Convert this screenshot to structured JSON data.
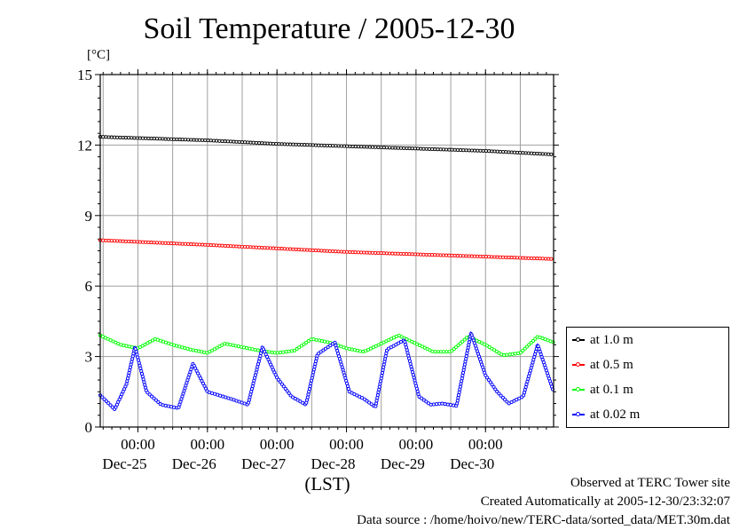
{
  "chart_data": {
    "type": "line",
    "title": "Soil Temperature / 2005-12-30",
    "unit_label": "[°C]",
    "xlabel": "(LST)",
    "ylim": [
      0,
      15
    ],
    "y_ticks": [
      "0",
      "3",
      "6",
      "9",
      "12",
      "15"
    ],
    "x_ticks": [
      {
        "time": "00:00",
        "date": "Dec-25"
      },
      {
        "time": "00:00",
        "date": "Dec-26"
      },
      {
        "time": "00:00",
        "date": "Dec-27"
      },
      {
        "time": "00:00",
        "date": "Dec-28"
      },
      {
        "time": "00:00",
        "date": "Dec-29"
      },
      {
        "time": "00:00",
        "date": "Dec-30"
      }
    ],
    "xlim": [
      "2005-12-24T11:00",
      "2005-12-30T23:30"
    ],
    "grid": true,
    "legend_position": "right",
    "series": [
      {
        "name": "at 1.0 m",
        "color": "#000000",
        "x": [
          "2005-12-24T11:00",
          "2005-12-26T00:00",
          "2005-12-27T00:00",
          "2005-12-28T00:00",
          "2005-12-29T00:00",
          "2005-12-30T00:00",
          "2005-12-30T23:30"
        ],
        "values": [
          12.35,
          12.2,
          12.05,
          11.95,
          11.85,
          11.75,
          11.6
        ]
      },
      {
        "name": "at 0.5 m",
        "color": "#ff0000",
        "x": [
          "2005-12-24T11:00",
          "2005-12-26T00:00",
          "2005-12-27T00:00",
          "2005-12-28T00:00",
          "2005-12-29T00:00",
          "2005-12-30T00:00",
          "2005-12-30T23:30"
        ],
        "values": [
          7.95,
          7.75,
          7.6,
          7.45,
          7.35,
          7.25,
          7.15
        ]
      },
      {
        "name": "at 0.1 m",
        "color": "#00ff00",
        "x": [
          "2005-12-24T11:00",
          "2005-12-24T18:00",
          "2005-12-25T00:00",
          "2005-12-25T06:00",
          "2005-12-25T12:00",
          "2005-12-25T18:00",
          "2005-12-26T00:00",
          "2005-12-26T06:00",
          "2005-12-26T12:00",
          "2005-12-26T18:00",
          "2005-12-27T00:00",
          "2005-12-27T06:00",
          "2005-12-27T12:00",
          "2005-12-27T18:00",
          "2005-12-28T00:00",
          "2005-12-28T06:00",
          "2005-12-28T12:00",
          "2005-12-28T18:00",
          "2005-12-29T00:00",
          "2005-12-29T06:00",
          "2005-12-29T12:00",
          "2005-12-29T18:00",
          "2005-12-30T00:00",
          "2005-12-30T06:00",
          "2005-12-30T12:00",
          "2005-12-30T18:00",
          "2005-12-30T23:30"
        ],
        "values": [
          3.9,
          3.5,
          3.35,
          3.75,
          3.5,
          3.3,
          3.15,
          3.55,
          3.4,
          3.25,
          3.15,
          3.25,
          3.75,
          3.6,
          3.35,
          3.2,
          3.55,
          3.9,
          3.55,
          3.2,
          3.2,
          3.85,
          3.5,
          3.05,
          3.15,
          3.85,
          3.6
        ]
      },
      {
        "name": "at 0.02 m",
        "color": "#0000ff",
        "x": [
          "2005-12-24T11:00",
          "2005-12-24T16:00",
          "2005-12-24T20:00",
          "2005-12-24T23:00",
          "2005-12-25T03:00",
          "2005-12-25T08:00",
          "2005-12-25T14:00",
          "2005-12-25T19:00",
          "2005-12-26T00:00",
          "2005-12-26T04:00",
          "2005-12-26T08:00",
          "2005-12-26T14:00",
          "2005-12-26T19:00",
          "2005-12-27T00:00",
          "2005-12-27T05:00",
          "2005-12-27T10:00",
          "2005-12-27T14:00",
          "2005-12-27T20:00",
          "2005-12-28T01:00",
          "2005-12-28T06:00",
          "2005-12-28T10:00",
          "2005-12-28T14:00",
          "2005-12-28T20:00",
          "2005-12-29T01:00",
          "2005-12-29T05:00",
          "2005-12-29T09:00",
          "2005-12-29T14:00",
          "2005-12-29T19:00",
          "2005-12-30T00:00",
          "2005-12-30T04:00",
          "2005-12-30T08:00",
          "2005-12-30T13:00",
          "2005-12-30T18:00",
          "2005-12-30T23:30"
        ],
        "values": [
          1.35,
          0.75,
          1.8,
          3.4,
          1.5,
          0.95,
          0.8,
          2.7,
          1.5,
          1.35,
          1.2,
          0.95,
          3.4,
          2.1,
          1.3,
          0.95,
          3.1,
          3.6,
          1.5,
          1.2,
          0.85,
          3.3,
          3.7,
          1.3,
          0.95,
          1.0,
          0.9,
          4.0,
          2.2,
          1.5,
          1.0,
          1.3,
          3.5,
          1.5
        ]
      }
    ]
  },
  "footer": {
    "line1": "Observed at TERC Tower site",
    "line2": "Created Automatically at 2005-12-30/23:32:07",
    "line3": "Data source : /home/hoivo/new/TERC-data/sorted_data/MET.30m.dat"
  }
}
